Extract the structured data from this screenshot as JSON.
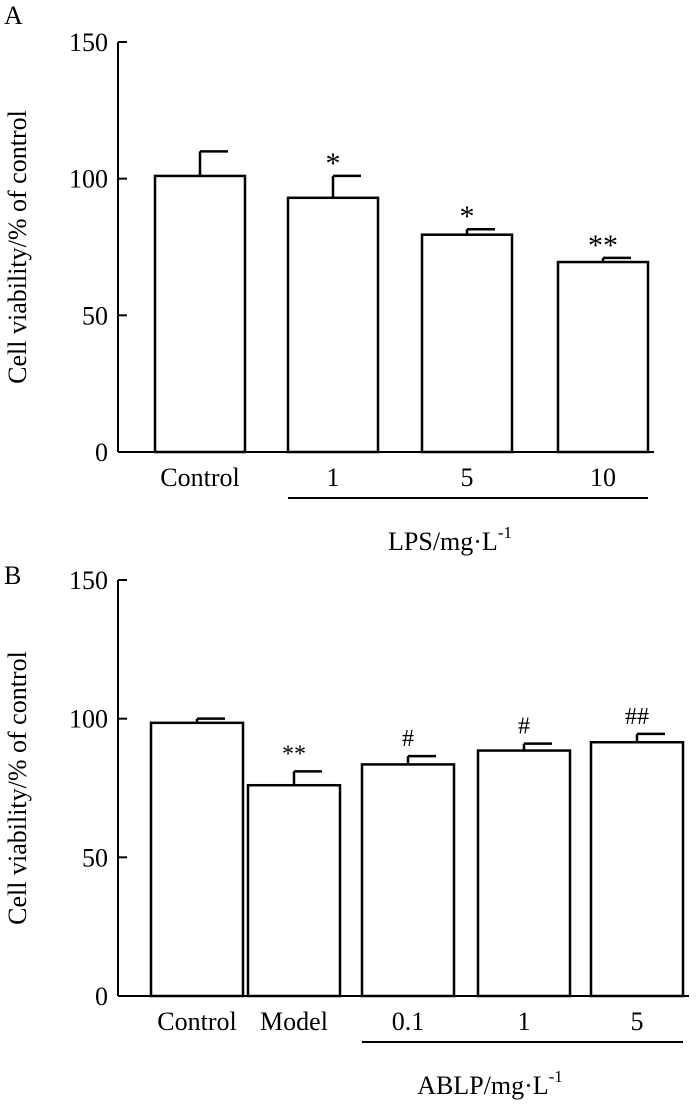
{
  "chart_data": [
    {
      "panel": "A",
      "type": "bar",
      "ylabel": "Cell viability/% of control",
      "ylim": [
        0,
        150
      ],
      "yticks": [
        0,
        50,
        100,
        150
      ],
      "categories": [
        "Control",
        "1",
        "5",
        "10"
      ],
      "values": [
        101,
        93,
        79.5,
        69.5
      ],
      "errors": [
        9,
        8,
        2,
        1.5
      ],
      "significance": [
        "",
        "*",
        "*",
        "**"
      ],
      "group": {
        "label": "LPS/mg·L",
        "superscript": "-1",
        "from": 1,
        "to": 3
      }
    },
    {
      "panel": "B",
      "type": "bar",
      "ylabel": "Cell viability/% of control",
      "ylim": [
        0,
        150
      ],
      "yticks": [
        0,
        50,
        100,
        150
      ],
      "categories": [
        "Control",
        "Model",
        "0.1",
        "1",
        "5"
      ],
      "values": [
        98.5,
        76,
        83.5,
        88.5,
        91.5
      ],
      "errors": [
        1.5,
        5,
        3,
        2.5,
        3
      ],
      "significance": [
        "",
        "**",
        "#",
        "#",
        "##"
      ],
      "group": {
        "label": "ABLP/mg·L",
        "superscript": "-1",
        "from": 2,
        "to": 4
      }
    }
  ]
}
